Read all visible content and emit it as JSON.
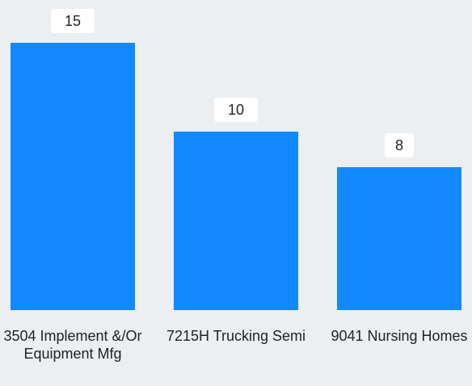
{
  "chart_data": {
    "type": "bar",
    "categories": [
      "3504 Implement &/Or Equipment Mfg",
      "7215H Trucking Semi",
      "9041 Nursing Homes"
    ],
    "values": [
      15,
      10,
      8
    ],
    "title": "",
    "xlabel": "",
    "ylabel": "",
    "ylim": [
      0,
      15
    ],
    "grid": false,
    "legend": "none",
    "colors": {
      "bar": "#1289ff",
      "background": "#eceff1",
      "label_box": "#ffffff",
      "text": "#222222"
    }
  }
}
